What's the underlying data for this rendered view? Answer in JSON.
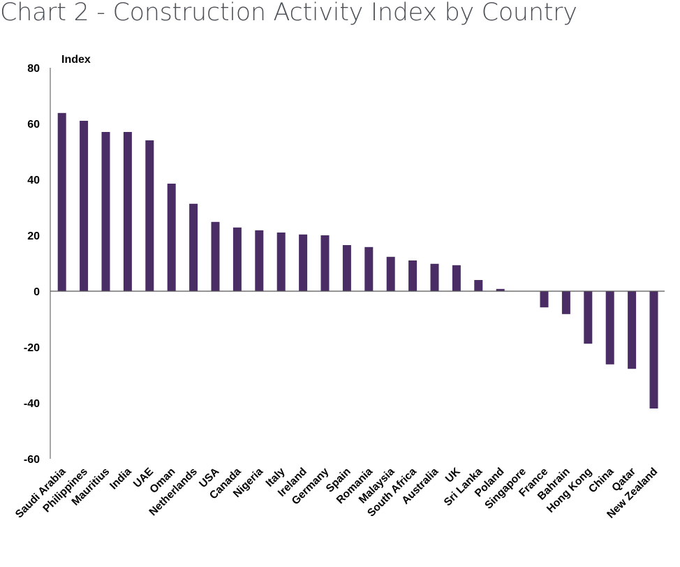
{
  "chart_data": {
    "type": "bar",
    "title": "Chart 2 - Construction Activity Index by Country",
    "ylabel": "Index",
    "xlabel": "",
    "ylim": [
      -60,
      80
    ],
    "yticks": [
      80,
      60,
      40,
      20,
      0,
      -20,
      -40,
      -60
    ],
    "grid": false,
    "bar_color": "#4b2d66",
    "categories": [
      "Saudi Arabia",
      "Philippines",
      "Mauritius",
      "India",
      "UAE",
      "Oman",
      "Netherlands",
      "USA",
      "Canada",
      "Nigeria",
      "Italy",
      "Ireland",
      "Germany",
      "Spain",
      "Romania",
      "Malaysia",
      "South Africa",
      "Australia",
      "UK",
      "Sri Lanka",
      "Poland",
      "Singapore",
      "France",
      "Bahrain",
      "Hong Kong",
      "China",
      "Qatar",
      "New Zealand"
    ],
    "values": [
      63.8,
      61,
      57,
      57,
      54,
      38.5,
      31.3,
      24.8,
      22.8,
      21.8,
      21,
      20.3,
      20,
      16.5,
      15.8,
      12.3,
      11,
      9.8,
      9.3,
      4,
      0.8,
      0,
      -5.8,
      -8.2,
      -18.8,
      -26.2,
      -27.8,
      -42
    ]
  }
}
